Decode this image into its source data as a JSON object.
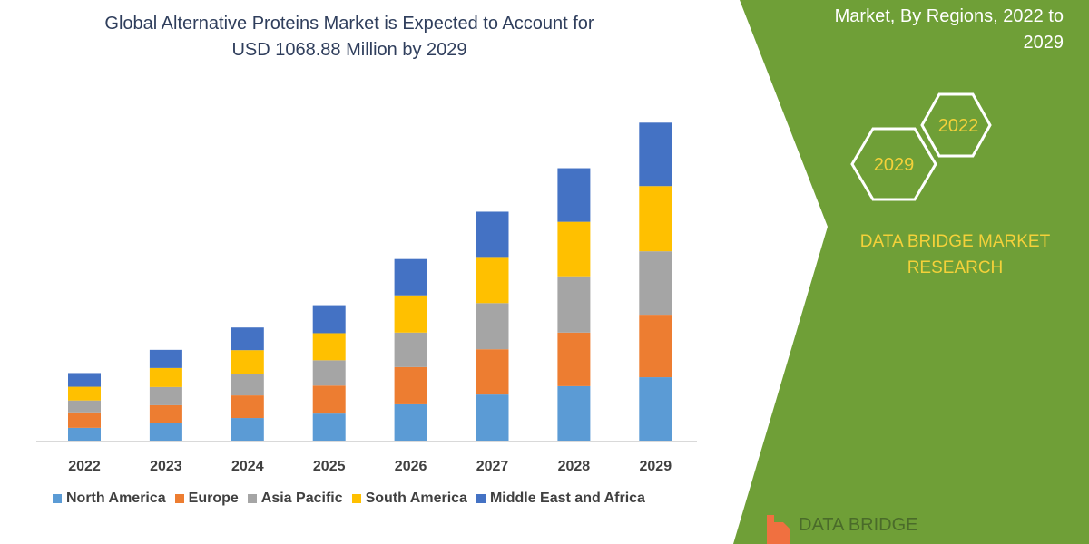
{
  "title_line1": "Global Alternative Proteins Market is Expected to Account for",
  "title_line2": "USD 1068.88 Million by 2029",
  "side_panel": {
    "heading_line1": "Market, By Regions, 2022 to",
    "heading_line2": "2029",
    "hex_1": "2022",
    "hex_2": "2029",
    "brand_line1": "DATA BRIDGE MARKET",
    "brand_line2": "RESEARCH",
    "footer_logo": "DATA BRIDGE",
    "green": "#6f9f37",
    "yellow": "#f4d13a"
  },
  "chart_data": {
    "type": "bar",
    "stacked": true,
    "title": "Global Alternative Proteins Market is Expected to Account for USD 1068.88 Million by 2029",
    "categories": [
      "2022",
      "2023",
      "2024",
      "2025",
      "2026",
      "2027",
      "2028",
      "2029"
    ],
    "series": [
      {
        "name": "North America",
        "color": "#5b9bd5",
        "values": [
          43,
          58,
          76,
          91,
          122,
          155,
          183,
          213
        ]
      },
      {
        "name": "Europe",
        "color": "#ed7d31",
        "values": [
          52,
          61,
          76,
          94,
          125,
          152,
          180,
          210
        ]
      },
      {
        "name": "Asia Pacific",
        "color": "#a5a5a5",
        "values": [
          40,
          61,
          73,
          85,
          116,
          155,
          189,
          213
        ]
      },
      {
        "name": "South America",
        "color": "#ffc000",
        "values": [
          46,
          64,
          79,
          91,
          125,
          152,
          183,
          219
        ]
      },
      {
        "name": "Middle East and Africa",
        "color": "#4472c4",
        "values": [
          46,
          61,
          76,
          94,
          122,
          155,
          180,
          213
        ]
      }
    ],
    "ylim": [
      0,
      1100
    ],
    "grid": false,
    "y_axis_shown": false,
    "legend": "bottom"
  }
}
